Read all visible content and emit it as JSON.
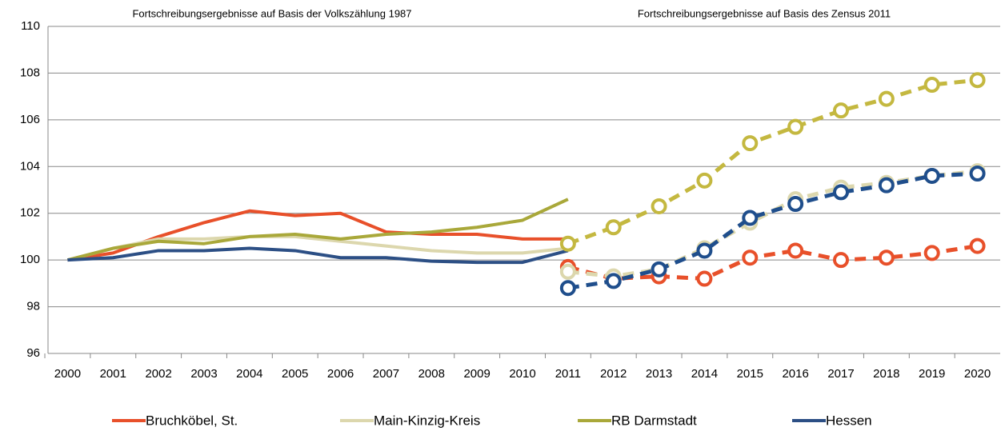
{
  "chart_data": [
    {
      "type": "line",
      "title": "Fortschreibungsergebnisse auf Basis der Volkszählung 1987",
      "x": [
        2000,
        2001,
        2002,
        2003,
        2004,
        2005,
        2006,
        2007,
        2008,
        2009,
        2010,
        2011
      ],
      "xlim": [
        1999.5,
        2020.5
      ],
      "xticks": [
        2000,
        2001,
        2002,
        2003,
        2004,
        2005,
        2006,
        2007,
        2008,
        2009,
        2010,
        2011,
        2012,
        2013,
        2014,
        2015,
        2016,
        2017,
        2018,
        2019,
        2020
      ],
      "ylim": [
        96,
        110
      ],
      "yticks": [
        96,
        98,
        100,
        102,
        104,
        106,
        108,
        110
      ],
      "grid": true,
      "legend": "bottom",
      "series": [
        {
          "name": "Bruchköbel, St.",
          "color": "#e8502a",
          "values": [
            100,
            100.3,
            101.0,
            101.6,
            102.1,
            101.9,
            102.0,
            101.2,
            101.1,
            101.1,
            100.9,
            100.9
          ]
        },
        {
          "name": "Main-Kinzig-Kreis",
          "color": "#dcd7ad",
          "values": [
            100,
            100.5,
            100.9,
            100.9,
            101.0,
            101.0,
            100.8,
            100.6,
            100.4,
            100.3,
            100.3,
            100.5
          ]
        },
        {
          "name": "RB Darmstadt",
          "color": "#a9a83a",
          "values": [
            100,
            100.5,
            100.8,
            100.7,
            101.0,
            101.1,
            100.9,
            101.1,
            101.2,
            101.4,
            101.7,
            102.6
          ]
        },
        {
          "name": "Hessen",
          "color": "#2c4f85",
          "values": [
            100,
            100.1,
            100.4,
            100.4,
            100.5,
            100.4,
            100.1,
            100.1,
            99.95,
            99.9,
            99.9,
            100.4
          ]
        }
      ]
    },
    {
      "type": "line",
      "title": "Fortschreibungsergebnisse auf Basis des Zensus 2011",
      "dashed": true,
      "markers": true,
      "x": [
        2011,
        2012,
        2013,
        2014,
        2015,
        2016,
        2017,
        2018,
        2019,
        2020
      ],
      "series": [
        {
          "color": "#e8502a",
          "values": [
            99.7,
            99.2,
            99.3,
            99.2,
            100.1,
            100.4,
            100.0,
            100.1,
            100.3,
            100.6
          ]
        },
        {
          "color": "#dcd7ad",
          "values": [
            99.5,
            99.3,
            99.6,
            100.5,
            101.6,
            102.6,
            103.1,
            103.3,
            103.6,
            103.8
          ]
        },
        {
          "color": "#c4b840",
          "values": [
            100.7,
            101.4,
            102.3,
            103.4,
            105.0,
            105.7,
            106.4,
            106.9,
            107.5,
            107.7
          ]
        },
        {
          "color": "#1f4e8c",
          "values": [
            98.8,
            99.1,
            99.6,
            100.4,
            101.8,
            102.4,
            102.9,
            103.2,
            103.6,
            103.7
          ]
        }
      ]
    }
  ]
}
